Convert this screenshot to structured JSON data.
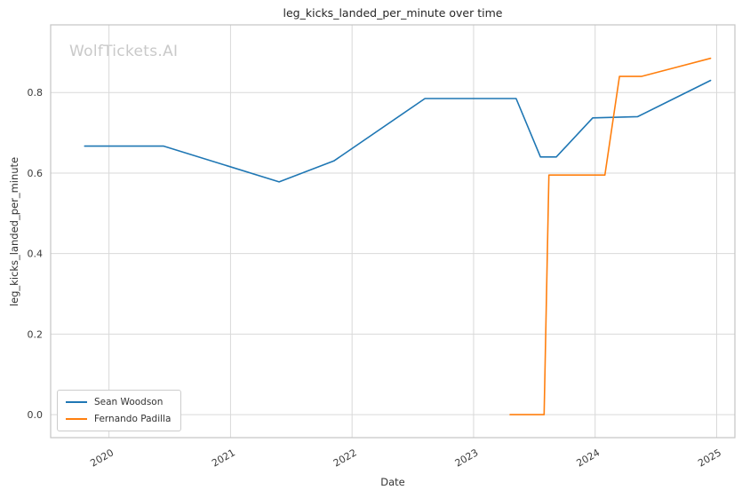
{
  "chart_data": {
    "type": "line",
    "title": "leg_kicks_landed_per_minute over time",
    "xlabel": "Date",
    "ylabel": "leg_kicks_landed_per_minute",
    "watermark": "WolfTickets.AI",
    "grid": true,
    "legend_position": "lower left",
    "x_ticks": [
      "2020",
      "2021",
      "2022",
      "2023",
      "2024",
      "2025"
    ],
    "x_tick_values": [
      2020,
      2021,
      2022,
      2023,
      2024,
      2025
    ],
    "y_ticks": [
      0.0,
      0.2,
      0.4,
      0.6,
      0.8
    ],
    "x_range": [
      2019.52,
      2025.15
    ],
    "y_range": [
      -0.057,
      0.968
    ],
    "series": [
      {
        "name": "Sean Woodson",
        "color": "#1f77b4",
        "points": [
          [
            2019.8,
            0.667
          ],
          [
            2020.45,
            0.667
          ],
          [
            2021.4,
            0.578
          ],
          [
            2021.85,
            0.63
          ],
          [
            2022.6,
            0.785
          ],
          [
            2023.35,
            0.785
          ],
          [
            2023.55,
            0.64
          ],
          [
            2023.68,
            0.64
          ],
          [
            2023.98,
            0.737
          ],
          [
            2024.35,
            0.74
          ],
          [
            2024.95,
            0.83
          ]
        ]
      },
      {
        "name": "Fernando Padilla",
        "color": "#ff7f0e",
        "points": [
          [
            2023.3,
            0.0
          ],
          [
            2023.58,
            0.0
          ],
          [
            2023.62,
            0.595
          ],
          [
            2024.08,
            0.595
          ],
          [
            2024.2,
            0.84
          ],
          [
            2024.38,
            0.84
          ],
          [
            2024.95,
            0.885
          ]
        ]
      }
    ],
    "colors": {
      "grid": "#d9d9d9",
      "spine": "#c4c4c4",
      "tick_label": "#3a3a3a"
    }
  }
}
